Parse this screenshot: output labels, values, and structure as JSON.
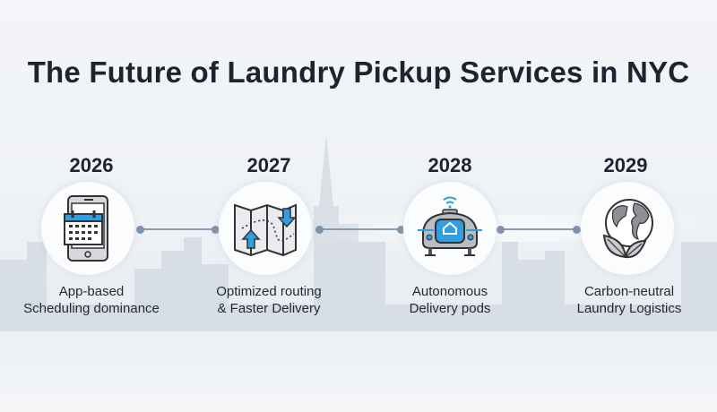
{
  "title": "The Future of Laundry Pickup Services in NYC",
  "accent_color": "#2f9fe0",
  "connector_color": "#7d92ad",
  "timeline": [
    {
      "year": "2026",
      "icon": "smartphone-calendar-icon",
      "label_line1": "App-based",
      "label_line2": "Scheduling dominance"
    },
    {
      "year": "2027",
      "icon": "map-route-icon",
      "label_line1": "Optimized routing",
      "label_line2": "& Faster Delivery"
    },
    {
      "year": "2028",
      "icon": "autonomous-pod-icon",
      "label_line1": "Autonomous",
      "label_line2": "Delivery pods"
    },
    {
      "year": "2029",
      "icon": "globe-leaf-icon",
      "label_line1": "Carbon-neutral",
      "label_line2": "Laundry Logistics"
    }
  ]
}
